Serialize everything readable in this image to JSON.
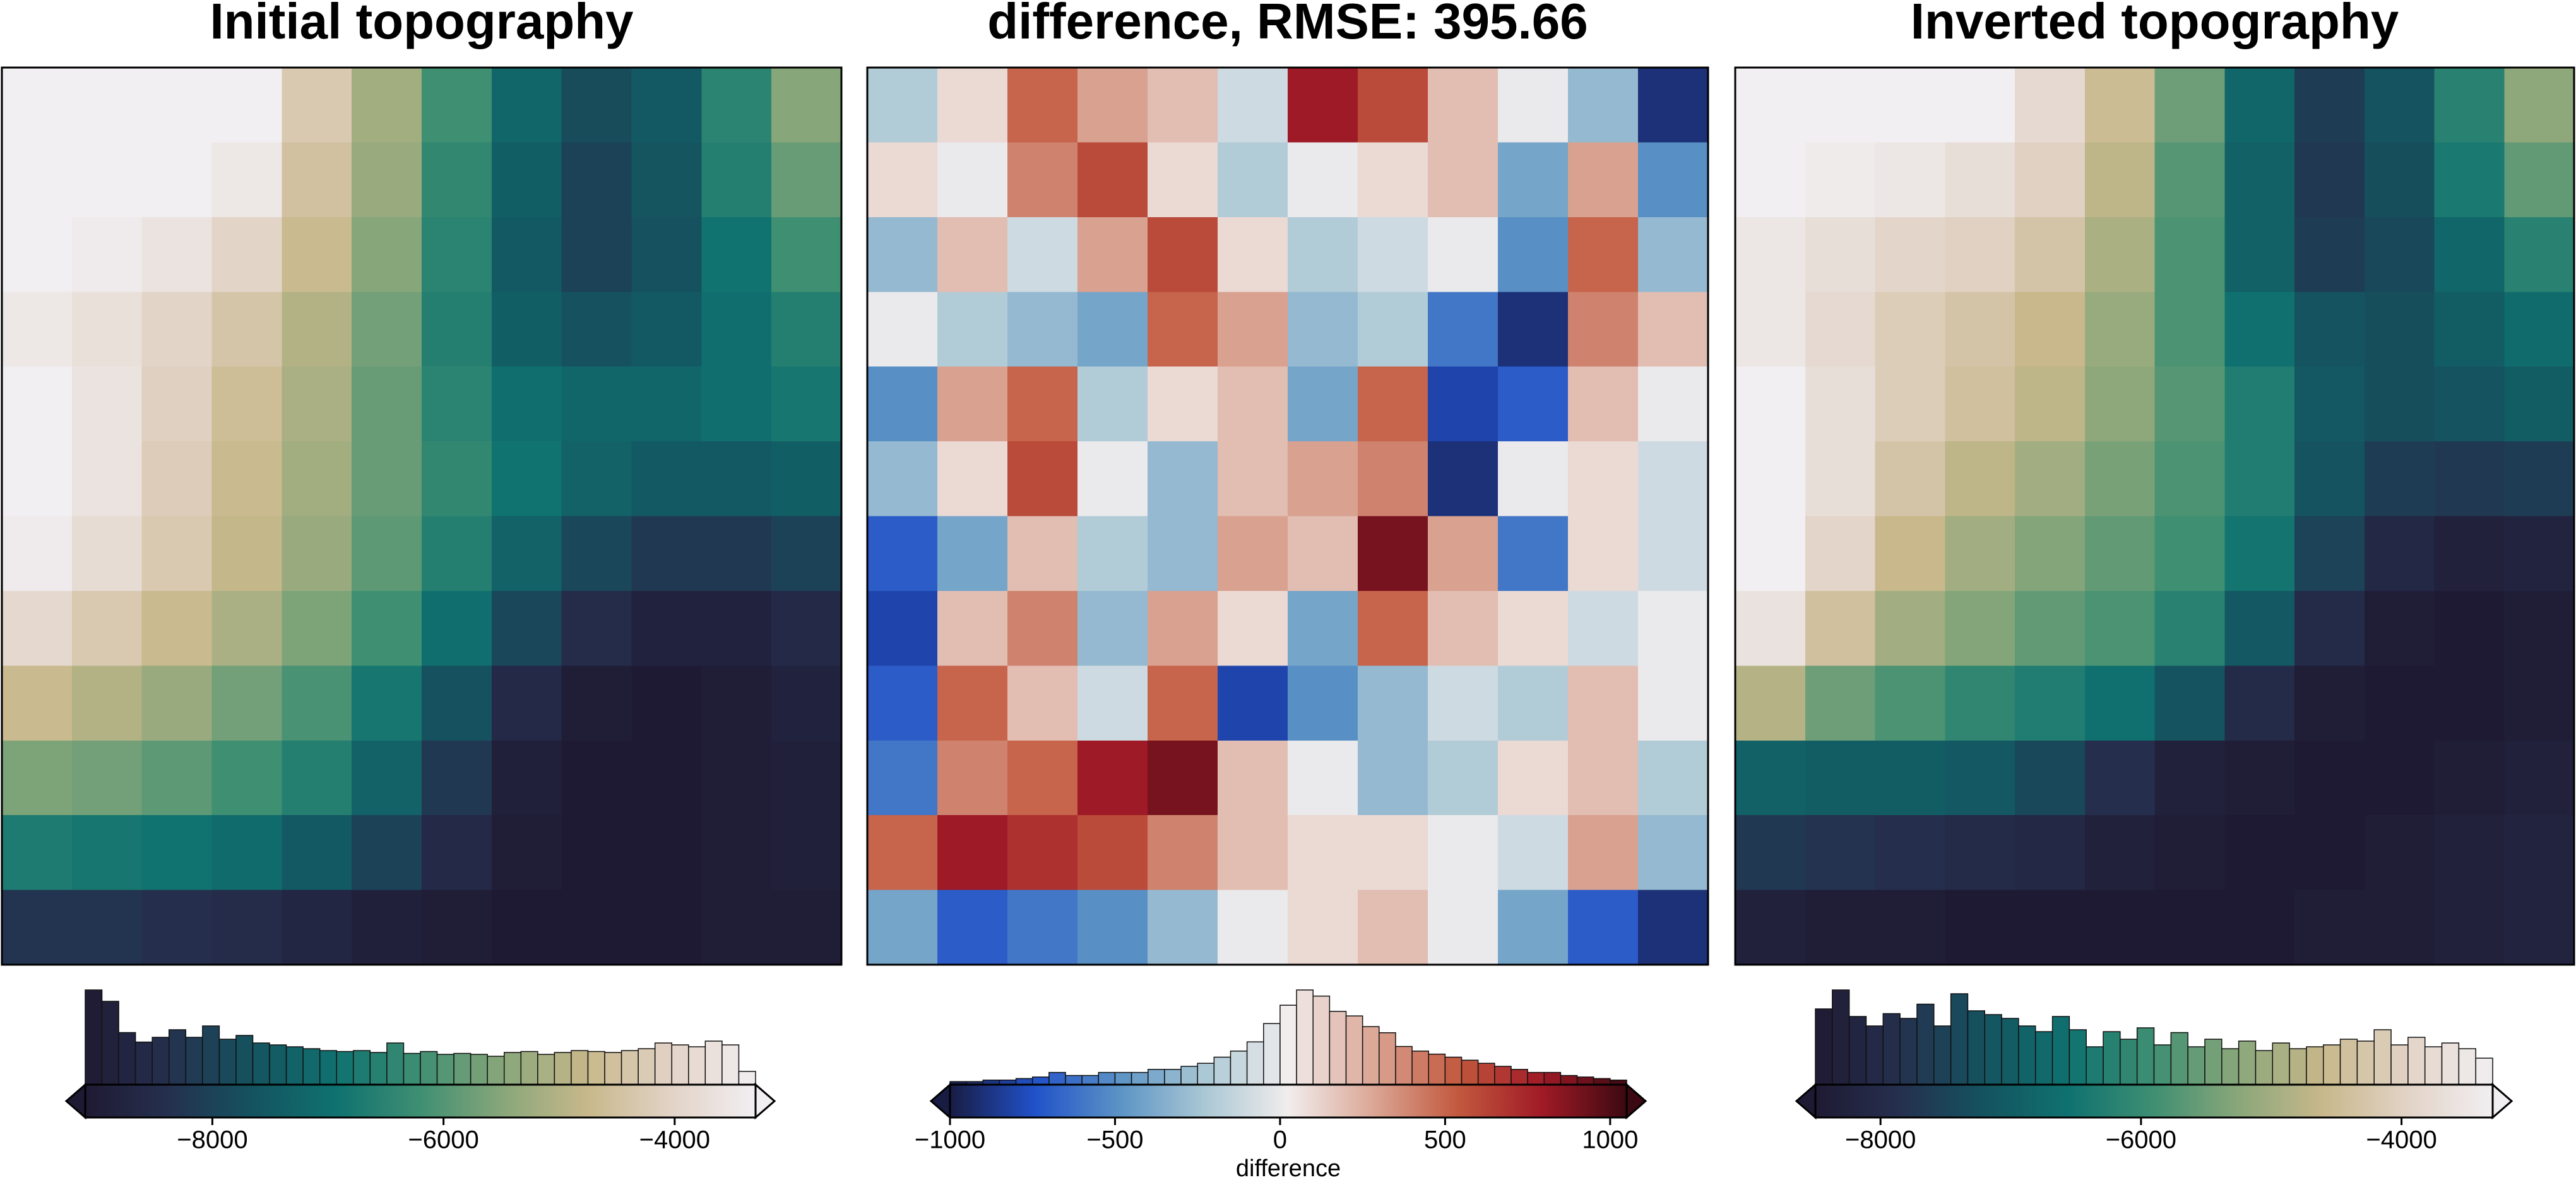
{
  "chart_data": [
    {
      "type": "heatmap",
      "title": "Initial topography",
      "colormap": [
        "#1f1a33",
        "#25304e",
        "#14535f",
        "#0f7270",
        "#3f8f72",
        "#8aa77a",
        "#c8b88b",
        "#e2d3c7",
        "#f1eff2"
      ],
      "z": [
        [
          -3000,
          -3000,
          -3100,
          -3300,
          -4300,
          -5200,
          -6200,
          -7200,
          -7800,
          -7500,
          -6500,
          -5500
        ],
        [
          -3000,
          -3100,
          -3200,
          -3500,
          -4500,
          -5300,
          -6400,
          -7400,
          -8000,
          -7600,
          -6600,
          -5800
        ],
        [
          -3300,
          -3400,
          -3600,
          -4000,
          -4700,
          -5500,
          -6500,
          -7500,
          -8000,
          -7700,
          -6900,
          -6200
        ],
        [
          -3500,
          -3700,
          -4000,
          -4400,
          -5000,
          -5700,
          -6600,
          -7400,
          -7700,
          -7500,
          -7000,
          -6600
        ],
        [
          -3300,
          -3600,
          -4100,
          -4600,
          -5100,
          -5800,
          -6500,
          -7000,
          -7200,
          -7200,
          -7000,
          -6800
        ],
        [
          -3200,
          -3600,
          -4200,
          -4700,
          -5200,
          -5800,
          -6400,
          -6900,
          -7300,
          -7500,
          -7500,
          -7400
        ],
        [
          -3400,
          -3800,
          -4300,
          -4800,
          -5300,
          -5900,
          -6600,
          -7300,
          -7900,
          -8200,
          -8200,
          -8000
        ],
        [
          -3900,
          -4300,
          -4700,
          -5100,
          -5600,
          -6200,
          -7000,
          -7900,
          -8500,
          -8800,
          -8800,
          -8600
        ],
        [
          -4700,
          -5000,
          -5300,
          -5700,
          -6100,
          -6800,
          -7700,
          -8600,
          -9000,
          -9100,
          -9000,
          -8800
        ],
        [
          -5600,
          -5700,
          -5900,
          -6200,
          -6600,
          -7300,
          -8200,
          -8900,
          -9100,
          -9100,
          -9000,
          -8900
        ],
        [
          -6700,
          -6800,
          -6900,
          -7100,
          -7500,
          -8000,
          -8600,
          -9000,
          -9100,
          -9100,
          -9000,
          -8900
        ],
        [
          -8300,
          -8300,
          -8400,
          -8500,
          -8700,
          -8900,
          -9000,
          -9100,
          -9100,
          -9100,
          -9000,
          -9000
        ]
      ],
      "colorbar": {
        "type": "histogram",
        "xlim": [
          -9100,
          -3300
        ],
        "xticks": [
          {
            "value": -8000,
            "label": "−8000"
          },
          {
            "value": -6000,
            "label": "−6000"
          },
          {
            "value": -4000,
            "label": "−4000"
          }
        ],
        "bins": [
          -9100,
          -8955,
          -8810,
          -8665,
          -8520,
          -8375,
          -8230,
          -8085,
          -7940,
          -7795,
          -7650,
          -7505,
          -7360,
          -7215,
          -7070,
          -6925,
          -6780,
          -6635,
          -6490,
          -6345,
          -6200,
          -6055,
          -5910,
          -5765,
          -5620,
          -5475,
          -5330,
          -5185,
          -5040,
          -4895,
          -4750,
          -4605,
          -4460,
          -4315,
          -4170,
          -4025,
          -3880,
          -3735,
          -3590,
          -3445,
          -3300
        ],
        "counts": [
          100,
          88,
          55,
          45,
          50,
          58,
          50,
          62,
          48,
          52,
          44,
          42,
          40,
          38,
          36,
          35,
          36,
          34,
          44,
          33,
          35,
          32,
          33,
          32,
          30,
          34,
          35,
          32,
          34,
          36,
          35,
          34,
          36,
          38,
          44,
          42,
          40,
          46,
          42,
          14
        ]
      }
    },
    {
      "type": "heatmap",
      "title": "difference, RMSE: 395.66",
      "colormap": [
        "#181c43",
        "#2151c9",
        "#5b93c5",
        "#a9c7d4",
        "#f1eded",
        "#dba796",
        "#c2593f",
        "#a01a26",
        "#3c0912"
      ],
      "z": [
        [
          -200,
          100,
          500,
          300,
          200,
          -100,
          800,
          600,
          200,
          0,
          -300,
          -900
        ],
        [
          100,
          0,
          400,
          600,
          100,
          -200,
          0,
          100,
          200,
          -400,
          300,
          -500
        ],
        [
          -300,
          200,
          -100,
          300,
          600,
          100,
          -200,
          -100,
          0,
          -500,
          500,
          -300
        ],
        [
          0,
          -200,
          -300,
          -400,
          500,
          300,
          -300,
          -200,
          -600,
          -900,
          400,
          200
        ],
        [
          -500,
          300,
          500,
          -200,
          100,
          200,
          -400,
          500,
          -800,
          -700,
          200,
          0
        ],
        [
          -300,
          100,
          600,
          0,
          -300,
          200,
          300,
          400,
          -900,
          0,
          100,
          -100
        ],
        [
          -700,
          -400,
          200,
          -200,
          -300,
          300,
          200,
          900,
          300,
          -600,
          100,
          -100
        ],
        [
          -800,
          200,
          400,
          -300,
          300,
          100,
          -400,
          500,
          200,
          100,
          -100,
          0
        ],
        [
          -700,
          500,
          200,
          -100,
          500,
          -800,
          -500,
          -300,
          -100,
          -200,
          200,
          0
        ],
        [
          -600,
          400,
          500,
          800,
          900,
          200,
          0,
          -300,
          -200,
          100,
          200,
          -200
        ],
        [
          500,
          800,
          700,
          600,
          400,
          200,
          100,
          100,
          0,
          -100,
          300,
          -300
        ],
        [
          -400,
          -700,
          -600,
          -500,
          -300,
          0,
          100,
          200,
          0,
          -400,
          -700,
          -900
        ]
      ],
      "colorbar": {
        "type": "histogram",
        "xlim": [
          -1000,
          1050
        ],
        "xlabel": "difference",
        "xticks": [
          {
            "value": -1000,
            "label": "−1000"
          },
          {
            "value": -500,
            "label": "−500"
          },
          0,
          500,
          1000
        ],
        "bins": [
          -1000,
          -950,
          -900,
          -850,
          -800,
          -750,
          -700,
          -650,
          -600,
          -550,
          -500,
          -450,
          -400,
          -350,
          -300,
          -250,
          -200,
          -150,
          -100,
          -50,
          0,
          50,
          100,
          150,
          200,
          250,
          300,
          350,
          400,
          450,
          500,
          550,
          600,
          650,
          700,
          750,
          800,
          850,
          900,
          950,
          1000,
          1050
        ],
        "counts": [
          2,
          2,
          3,
          3,
          4,
          5,
          8,
          6,
          6,
          8,
          8,
          8,
          10,
          10,
          12,
          14,
          18,
          22,
          28,
          40,
          52,
          62,
          58,
          48,
          45,
          38,
          34,
          25,
          22,
          20,
          18,
          16,
          14,
          12,
          10,
          8,
          8,
          6,
          5,
          4,
          3
        ]
      }
    },
    {
      "type": "heatmap",
      "title": "Inverted topography",
      "colormap": [
        "#1f1a33",
        "#25304e",
        "#14535f",
        "#0f7270",
        "#3f8f72",
        "#8aa77a",
        "#c8b88b",
        "#e2d3c7",
        "#f1eff2"
      ],
      "z": [
        [
          -3200,
          -3000,
          -3100,
          -3300,
          -3800,
          -4500,
          -5500,
          -6800,
          -7600,
          -7200,
          -6200,
          -5200
        ],
        [
          -3300,
          -3400,
          -3500,
          -3700,
          -4000,
          -4700,
          -5700,
          -6900,
          -7700,
          -7300,
          -6400,
          -5600
        ],
        [
          -3500,
          -3700,
          -3900,
          -4000,
          -4300,
          -4900,
          -5800,
          -6900,
          -7600,
          -7400,
          -6800,
          -6200
        ],
        [
          -3500,
          -3800,
          -4100,
          -4300,
          -4600,
          -5100,
          -5800,
          -6600,
          -7200,
          -7300,
          -7000,
          -6700
        ],
        [
          -3300,
          -3700,
          -4100,
          -4400,
          -4700,
          -5200,
          -5700,
          -6300,
          -7100,
          -7300,
          -7200,
          -7000
        ],
        [
          -3100,
          -3700,
          -4300,
          -4700,
          -5000,
          -5400,
          -5800,
          -6300,
          -7200,
          -7600,
          -7700,
          -7600
        ],
        [
          -3200,
          -3900,
          -4600,
          -5000,
          -5300,
          -5600,
          -5900,
          -6500,
          -7500,
          -8100,
          -8300,
          -8200
        ],
        [
          -3600,
          -4400,
          -5000,
          -5300,
          -5600,
          -5800,
          -6200,
          -7100,
          -8000,
          -8400,
          -8500,
          -8400
        ],
        [
          -4800,
          -5500,
          -5800,
          -6100,
          -6300,
          -6600,
          -7200,
          -8000,
          -8400,
          -8500,
          -8500,
          -8400
        ],
        [
          -6900,
          -7000,
          -7000,
          -7100,
          -7400,
          -7900,
          -8300,
          -8400,
          -8500,
          -8500,
          -8400,
          -8300
        ],
        [
          -7700,
          -7800,
          -7900,
          -8000,
          -8100,
          -8300,
          -8400,
          -8500,
          -8500,
          -8400,
          -8300,
          -8200
        ],
        [
          -8300,
          -8400,
          -8400,
          -8500,
          -8500,
          -8500,
          -8500,
          -8500,
          -8400,
          -8400,
          -8300,
          -8200
        ]
      ],
      "colorbar": {
        "type": "histogram",
        "xlim": [
          -8500,
          -3300
        ],
        "xticks": [
          {
            "value": -8000,
            "label": "−8000"
          },
          {
            "value": -6000,
            "label": "−6000"
          },
          {
            "value": -4000,
            "label": "−4000"
          }
        ],
        "bins": [
          -8500,
          -8370,
          -8240,
          -8110,
          -7980,
          -7850,
          -7720,
          -7590,
          -7460,
          -7330,
          -7200,
          -7070,
          -6940,
          -6810,
          -6680,
          -6550,
          -6420,
          -6290,
          -6160,
          -6030,
          -5900,
          -5770,
          -5640,
          -5510,
          -5380,
          -5250,
          -5120,
          -4990,
          -4860,
          -4730,
          -4600,
          -4470,
          -4340,
          -4210,
          -4080,
          -3950,
          -3820,
          -3690,
          -3560,
          -3430,
          -3300
        ],
        "counts": [
          80,
          100,
          72,
          62,
          75,
          70,
          85,
          62,
          96,
          78,
          74,
          70,
          62,
          56,
          72,
          58,
          40,
          56,
          48,
          60,
          42,
          55,
          40,
          48,
          38,
          46,
          36,
          44,
          38,
          40,
          42,
          48,
          46,
          58,
          42,
          50,
          40,
          44,
          38,
          28
        ]
      }
    }
  ]
}
